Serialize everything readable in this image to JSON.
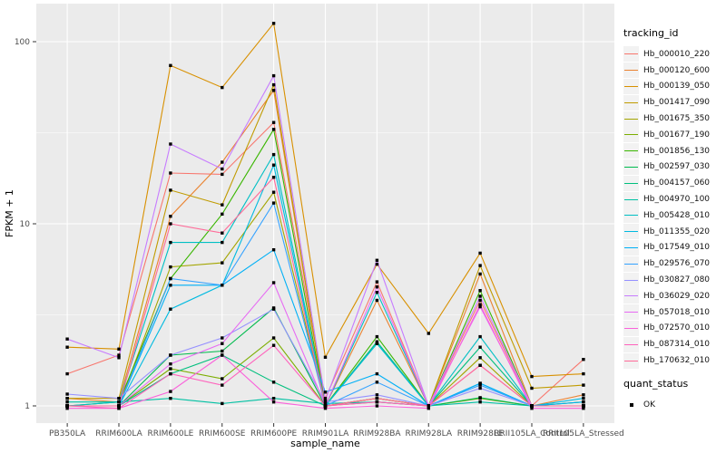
{
  "chart_data": {
    "type": "line",
    "title": "",
    "xlabel": "sample_name",
    "ylabel": "FPKM + 1",
    "y_scale": "log10",
    "y_ticks": [
      1,
      10,
      100
    ],
    "y_minor_breaks": [
      3.162,
      31.62
    ],
    "ylim": [
      0.8,
      155
    ],
    "grid": true,
    "categories": [
      "PB350LA",
      "RRIM600LA",
      "RRIM600LE",
      "RRIM600SE",
      "RRIM600PE",
      "RRIM901LA",
      "RRIM928BA",
      "RRIM928LA",
      "RRIM928LE",
      "RRII105LA_Control",
      "RRII105LA_Stressed"
    ],
    "series": [
      {
        "name": "Hb_000010_220",
        "color": "#F8766D",
        "values": [
          1.5,
          1.9,
          19,
          18.7,
          36,
          1.1,
          4.8,
          1.0,
          3.8,
          1.0,
          1.8
        ]
      },
      {
        "name": "Hb_000120_600",
        "color": "#EA8331",
        "values": [
          1.1,
          1.05,
          11,
          21.8,
          54,
          1.0,
          3.8,
          1.0,
          5.3,
          1.0,
          1.15
        ]
      },
      {
        "name": "Hb_000139_050",
        "color": "#D89000",
        "values": [
          2.1,
          2.05,
          74,
          56,
          126,
          1.85,
          6.0,
          2.5,
          6.9,
          1.45,
          1.5
        ]
      },
      {
        "name": "Hb_001417_090",
        "color": "#C09B00",
        "values": [
          1.1,
          1.1,
          15.3,
          12.7,
          58,
          1.0,
          1.1,
          1.0,
          5.9,
          1.25,
          1.3
        ]
      },
      {
        "name": "Hb_001675_350",
        "color": "#A3A500",
        "values": [
          1.0,
          1.0,
          5.8,
          6.1,
          14.9,
          1.0,
          1.05,
          1.0,
          1.84,
          1.0,
          1.0
        ]
      },
      {
        "name": "Hb_001677_190",
        "color": "#7CAE00",
        "values": [
          1.0,
          1.0,
          1.6,
          1.41,
          2.36,
          1.0,
          1.1,
          1.0,
          1.1,
          1.0,
          1.0
        ]
      },
      {
        "name": "Hb_001856_130",
        "color": "#39B600",
        "values": [
          1.0,
          1.05,
          5.0,
          11.3,
          33,
          1.0,
          2.4,
          1.0,
          4.3,
          1.0,
          1.05
        ]
      },
      {
        "name": "Hb_002597_030",
        "color": "#00BB4E",
        "values": [
          1.0,
          1.0,
          1.9,
          2.0,
          3.45,
          1.0,
          2.2,
          1.0,
          1.11,
          1.0,
          1.0
        ]
      },
      {
        "name": "Hb_004157_060",
        "color": "#00BF7D",
        "values": [
          1.0,
          1.0,
          1.5,
          1.9,
          1.35,
          1.0,
          2.25,
          1.0,
          2.1,
          1.0,
          1.0
        ]
      },
      {
        "name": "Hb_004970_100",
        "color": "#00C1A3",
        "values": [
          1.05,
          1.05,
          1.1,
          1.03,
          1.1,
          1.03,
          1.05,
          1.0,
          1.05,
          1.0,
          1.0
        ]
      },
      {
        "name": "Hb_005428_010",
        "color": "#00BFC4",
        "values": [
          1.0,
          1.05,
          7.9,
          7.9,
          24,
          1.0,
          4.2,
          1.0,
          2.4,
          1.0,
          1.0
        ]
      },
      {
        "name": "Hb_011355_020",
        "color": "#00BAE0",
        "values": [
          1.0,
          1.0,
          3.4,
          4.6,
          21,
          1.0,
          2.2,
          1.0,
          1.33,
          1.0,
          1.1
        ]
      },
      {
        "name": "Hb_017549_010",
        "color": "#00B0F6",
        "values": [
          1.0,
          1.0,
          4.6,
          4.6,
          7.2,
          1.19,
          1.5,
          1.0,
          1.33,
          1.0,
          1.05
        ]
      },
      {
        "name": "Hb_029576_070",
        "color": "#35A2FF",
        "values": [
          1.0,
          1.0,
          5.0,
          4.6,
          13,
          1.0,
          1.35,
          1.0,
          1.3,
          1.0,
          1.0
        ]
      },
      {
        "name": "Hb_030827_080",
        "color": "#9590FF",
        "values": [
          1.16,
          1.1,
          1.9,
          2.36,
          3.4,
          1.05,
          1.15,
          1.0,
          1.25,
          1.0,
          1.0
        ]
      },
      {
        "name": "Hb_036029_020",
        "color": "#C77CFF",
        "values": [
          2.33,
          1.84,
          27.4,
          20,
          65,
          1.07,
          6.3,
          1.0,
          4.0,
          1.0,
          1.0
        ]
      },
      {
        "name": "Hb_057018_010",
        "color": "#E76BF3",
        "values": [
          1.0,
          1.0,
          1.7,
          2.2,
          4.75,
          1.0,
          4.5,
          1.0,
          3.5,
          1.0,
          1.0
        ]
      },
      {
        "name": "Hb_072570_010",
        "color": "#FA62DB",
        "values": [
          0.97,
          0.97,
          1.2,
          1.9,
          1.05,
          0.97,
          1.0,
          0.97,
          3.6,
          0.97,
          0.97
        ]
      },
      {
        "name": "Hb_087314_010",
        "color": "#FF62BC",
        "values": [
          1.0,
          0.97,
          1.5,
          1.3,
          2.15,
          1.0,
          1.05,
          1.0,
          1.67,
          1.0,
          1.0
        ]
      },
      {
        "name": "Hb_170632_010",
        "color": "#FF6A98",
        "values": [
          1.0,
          1.0,
          10,
          8.9,
          18,
          1.0,
          1.1,
          1.0,
          1.67,
          1.0,
          1.0
        ]
      }
    ],
    "legend": {
      "title": "tracking_id",
      "position": "right"
    },
    "quant_legend": {
      "title": "quant_status",
      "items": [
        {
          "label": "OK",
          "marker": "black-square"
        }
      ]
    }
  },
  "colors": {
    "panel_background": "#EBEBEB",
    "grid_major": "#FFFFFF",
    "grid_minor": "#FFFFFF",
    "point_marker": "#000000",
    "tick_label": "#4D4D4D",
    "axis_title": "#000000",
    "legend_key_background": "#F2F2F2",
    "figure_background": "#FFFFFF"
  }
}
